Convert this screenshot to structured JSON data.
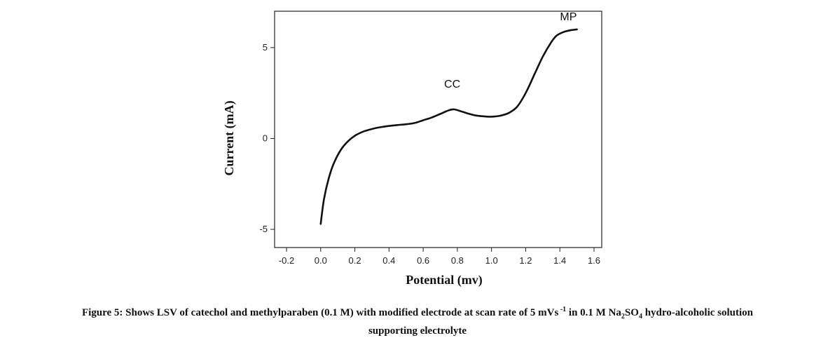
{
  "chart_data": {
    "type": "line",
    "xlabel": "Potential (mv)",
    "ylabel": "Current (mA)",
    "xlim": [
      -0.2,
      1.6
    ],
    "ylim": [
      -6,
      7
    ],
    "xticks": [
      "-0.2",
      "0.0",
      "0.2",
      "0.4",
      "0.6",
      "0.8",
      "1.0",
      "1.2",
      "1.4",
      "1.6"
    ],
    "xtick_values": [
      -0.2,
      0.0,
      0.2,
      0.4,
      0.6,
      0.8,
      1.0,
      1.2,
      1.4,
      1.6
    ],
    "yticks": [
      "-5",
      "0",
      "5"
    ],
    "ytick_values": [
      -5,
      0,
      5
    ],
    "grid": false,
    "series": [
      {
        "x": [
          0.0,
          0.02,
          0.05,
          0.08,
          0.12,
          0.16,
          0.2,
          0.25,
          0.3,
          0.35,
          0.4,
          0.45,
          0.5,
          0.55,
          0.6,
          0.65,
          0.7,
          0.75,
          0.78,
          0.82,
          0.86,
          0.9,
          0.95,
          1.0,
          1.05,
          1.1,
          1.15,
          1.2,
          1.25,
          1.3,
          1.35,
          1.38,
          1.42,
          1.46,
          1.5
        ],
        "values": [
          -4.7,
          -3.3,
          -2.1,
          -1.3,
          -0.6,
          -0.15,
          0.15,
          0.38,
          0.52,
          0.62,
          0.69,
          0.74,
          0.78,
          0.85,
          1.0,
          1.15,
          1.35,
          1.55,
          1.6,
          1.5,
          1.38,
          1.28,
          1.22,
          1.2,
          1.25,
          1.4,
          1.75,
          2.5,
          3.5,
          4.5,
          5.3,
          5.65,
          5.85,
          5.95,
          6.0
        ],
        "color": "#111111"
      }
    ],
    "annotations": [
      {
        "text": "CC",
        "x": 0.77,
        "y": 2.8
      },
      {
        "text": "MP",
        "x": 1.45,
        "y": 6.5
      }
    ]
  },
  "caption": {
    "line1_a": "Figure 5: Shows LSV of catechol and methylparaben (0.1 M) with modified electrode at scan rate of 5 mVs",
    "line1_sup": " -1",
    "line1_b": " in 0.1 M Na",
    "line1_sub1": "2",
    "line1_c": "SO",
    "line1_sub2": "4",
    "line1_d": " hydro-alcoholic solution",
    "line2": "supporting electrolyte"
  }
}
